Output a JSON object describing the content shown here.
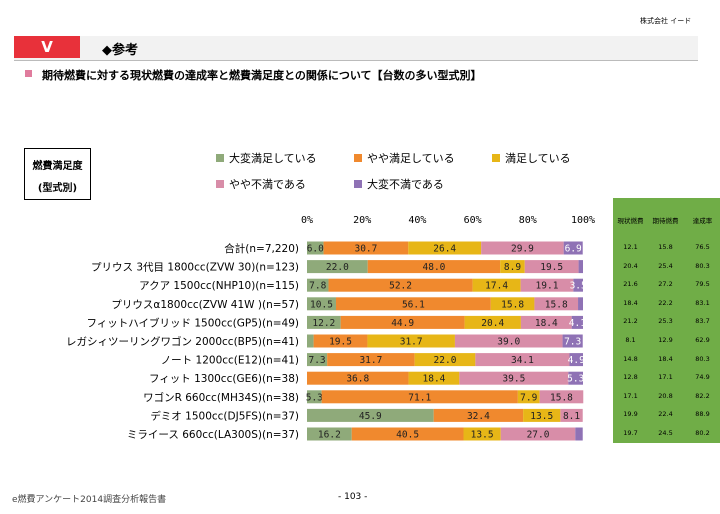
{
  "company": "株式会社 イード",
  "section": {
    "badge": "V",
    "title": "◆参考"
  },
  "subtitle": "期待燃費に対する現状燃費の達成率と燃費満足度との関係について【台数の多い型式別】",
  "label_box": {
    "line1": "燃費満足度",
    "line2": "(型式別)"
  },
  "colors": {
    "very_satisfied": "#8faa7a",
    "somewhat_satisfied": "#f0892e",
    "satisfied": "#e7b617",
    "somewhat_dissatisfied": "#d88da8",
    "very_dissatisfied": "#8f72b5",
    "table_bg": "#70ad47"
  },
  "chart_data": {
    "type": "bar",
    "stacked": true,
    "orientation": "horizontal",
    "xlim": [
      0,
      100
    ],
    "xticks": [
      "0%",
      "20%",
      "40%",
      "60%",
      "80%",
      "100%"
    ],
    "legend_position": "top",
    "categories": [
      "合計(n=7,220)",
      "プリウス 3代目 1800cc(ZVW 30)(n=123)",
      "アクア 1500cc(NHP10)(n=115)",
      "プリウスα1800cc(ZVW 41W )(n=57)",
      "フィットハイブリッド 1500cc(GP5)(n=49)",
      "レガシィツーリングワゴン 2000cc(BP5)(n=41)",
      "ノート 1200cc(E12)(n=41)",
      "フィット 1300cc(GE6)(n=38)",
      "ワゴンR 660cc(MH34S)(n=38)",
      "デミオ 1500cc(DJ5FS)(n=37)",
      "ミライース 660cc(LA300S)(n=37)"
    ],
    "series": [
      {
        "name": "大変満足している",
        "values": [
          6.0,
          22.0,
          7.8,
          10.5,
          12.2,
          2.4,
          7.3,
          0.0,
          5.3,
          45.9,
          16.2
        ],
        "labels": [
          "6.0",
          "22.0",
          "7.8",
          "10.5",
          "12.2",
          "",
          "7.3",
          "",
          "5.3",
          "45.9",
          "16.2"
        ]
      },
      {
        "name": "やや満足している",
        "values": [
          30.7,
          48.0,
          52.2,
          56.1,
          44.9,
          19.5,
          31.7,
          36.8,
          71.1,
          32.4,
          40.5
        ],
        "labels": [
          "30.7",
          "48.0",
          "52.2",
          "56.1",
          "44.9",
          "19.5",
          "31.7",
          "36.8",
          "71.1",
          "32.4",
          "40.5"
        ]
      },
      {
        "name": "満足している",
        "values": [
          26.4,
          8.9,
          17.4,
          15.8,
          20.4,
          31.7,
          22.0,
          18.4,
          7.9,
          13.5,
          13.5
        ],
        "labels": [
          "26.4",
          "8.9",
          "17.4",
          "15.8",
          "20.4",
          "31.7",
          "22.0",
          "18.4",
          "7.9",
          "13.5",
          "13.5"
        ]
      },
      {
        "name": "やや不満である",
        "values": [
          29.9,
          19.5,
          19.1,
          15.8,
          18.4,
          39.0,
          34.1,
          39.5,
          15.8,
          8.1,
          27.0
        ],
        "labels": [
          "29.9",
          "19.5",
          "19.1",
          "15.8",
          "18.4",
          "39.0",
          "34.1",
          "39.5",
          "15.8",
          "8.1",
          "27.0"
        ]
      },
      {
        "name": "大変不満である",
        "values": [
          6.9,
          1.6,
          3.5,
          1.8,
          4.1,
          7.3,
          4.9,
          5.3,
          0.0,
          0.0,
          2.7
        ],
        "labels": [
          "6.9",
          "",
          "3.5",
          "",
          "4.1",
          "7.3",
          "4.9",
          "5.3",
          "",
          "",
          ""
        ]
      }
    ]
  },
  "side_table": {
    "headers": [
      "現状燃費",
      "期待燃費",
      "達成率"
    ],
    "rows": [
      [
        "12.1",
        "15.8",
        "76.5"
      ],
      [
        "20.4",
        "25.4",
        "80.3"
      ],
      [
        "21.6",
        "27.2",
        "79.5"
      ],
      [
        "18.4",
        "22.2",
        "83.1"
      ],
      [
        "21.2",
        "25.3",
        "83.7"
      ],
      [
        "8.1",
        "12.9",
        "62.9"
      ],
      [
        "14.8",
        "18.4",
        "80.3"
      ],
      [
        "12.8",
        "17.1",
        "74.9"
      ],
      [
        "17.1",
        "20.8",
        "82.2"
      ],
      [
        "19.9",
        "22.4",
        "88.9"
      ],
      [
        "19.7",
        "24.5",
        "80.2"
      ]
    ]
  },
  "footer": {
    "left": "e燃費アンケート2014調査分析報告書",
    "page": "-  103  -"
  }
}
